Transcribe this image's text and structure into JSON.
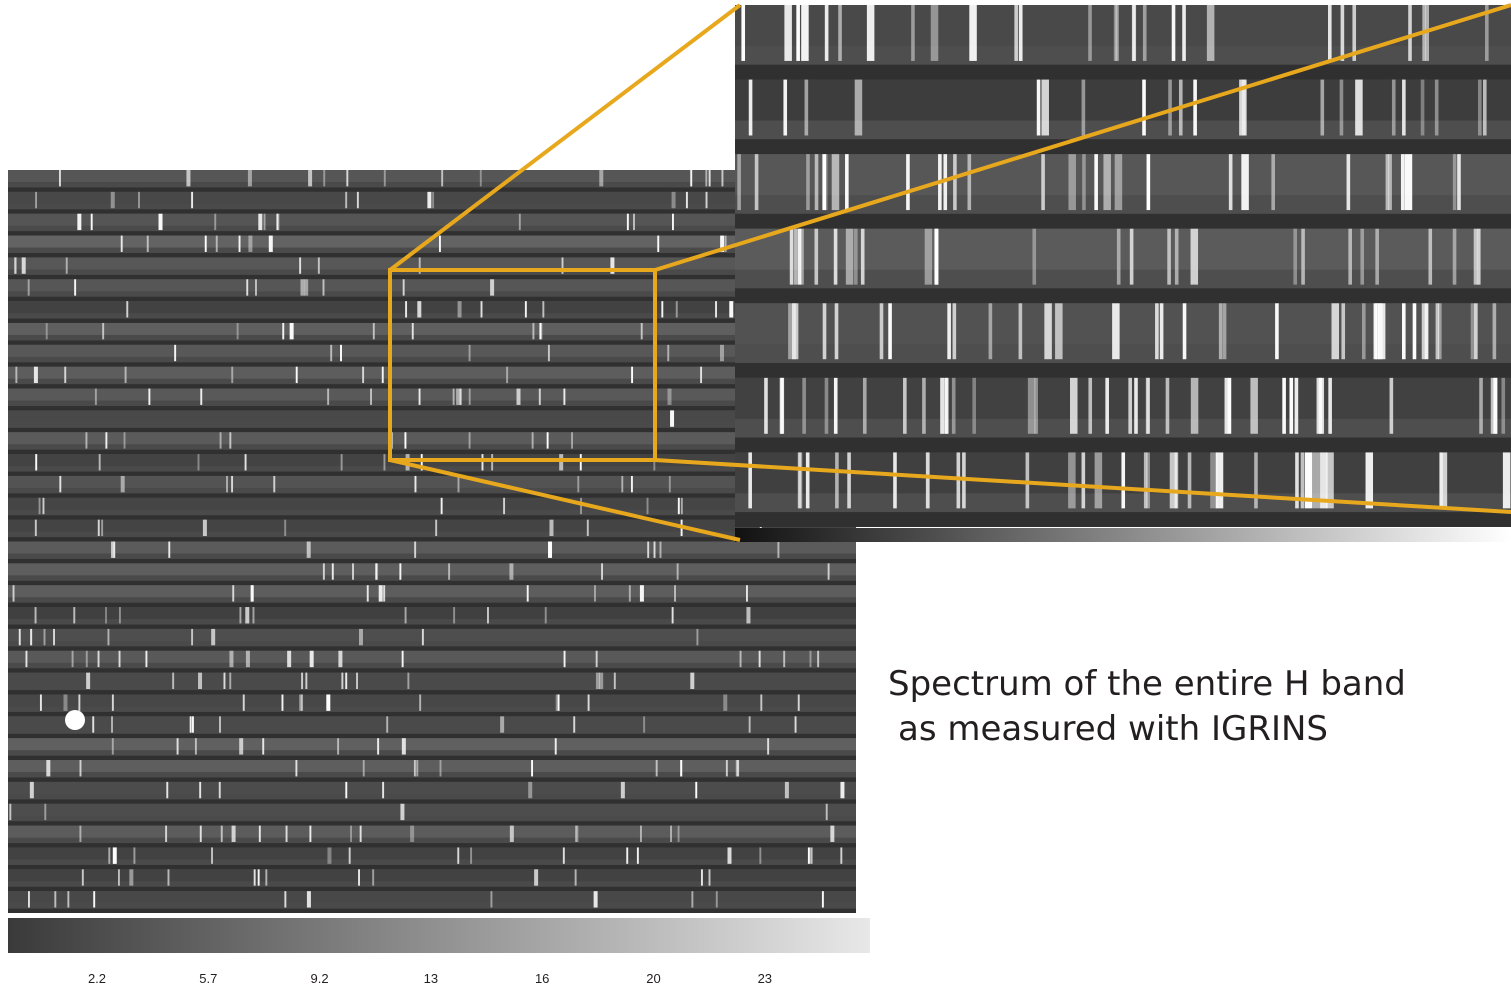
{
  "caption": {
    "line1": "Spectrum of the entire H band",
    "line2": "as measured with IGRINS"
  },
  "colorbar": {
    "ticks": [
      "2.2",
      "5.7",
      "9.2",
      "13",
      "16",
      "20",
      "23"
    ]
  }
}
